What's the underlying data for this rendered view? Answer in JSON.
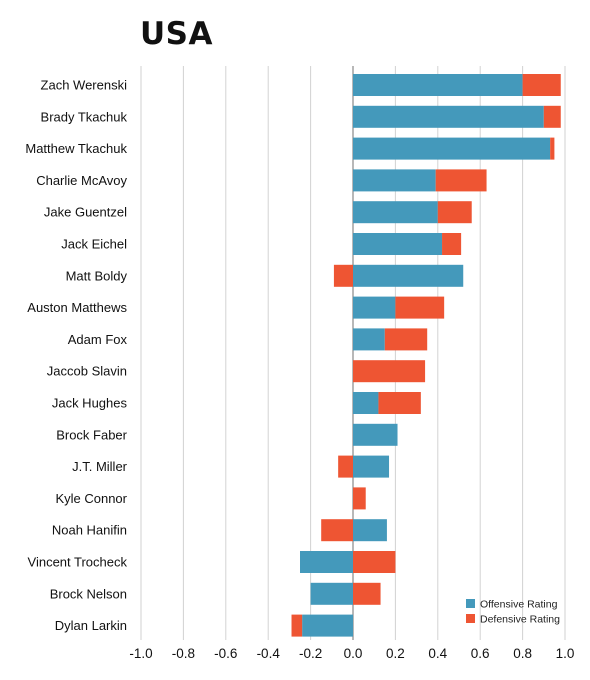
{
  "chart_data": {
    "type": "bar",
    "orientation": "horizontal",
    "stacked": true,
    "title": "USA",
    "xlabel": "",
    "ylabel": "",
    "xlim": [
      -1.0,
      1.0
    ],
    "xticks": [
      "-1.0",
      "-0.8",
      "-0.6",
      "-0.4",
      "-0.2",
      "0.0",
      "0.2",
      "0.4",
      "0.6",
      "0.8",
      "1.0"
    ],
    "grid": "vertical",
    "legend_position": "bottom-right",
    "categories": [
      "Zach Werenski",
      "Brady Tkachuk",
      "Matthew Tkachuk",
      "Charlie McAvoy",
      "Jake Guentzel",
      "Jack Eichel",
      "Matt Boldy",
      "Auston Matthews",
      "Adam Fox",
      "Jaccob Slavin",
      "Jack Hughes",
      "Brock Faber",
      "J.T. Miller",
      "Kyle Connor",
      "Noah Hanifin",
      "Vincent Trocheck",
      "Brock Nelson",
      "Dylan Larkin"
    ],
    "series": [
      {
        "name": "Offensive Rating",
        "color": "#4499bb",
        "values": [
          0.8,
          0.9,
          0.93,
          0.39,
          0.4,
          0.42,
          0.52,
          0.2,
          0.15,
          0.0,
          0.12,
          0.21,
          0.17,
          0.0,
          0.16,
          -0.25,
          -0.2,
          -0.24
        ]
      },
      {
        "name": "Defensive Rating",
        "color": "#ee5533",
        "values": [
          0.18,
          0.08,
          0.02,
          0.24,
          0.16,
          0.09,
          -0.09,
          0.23,
          0.2,
          0.34,
          0.2,
          0.0,
          -0.07,
          0.06,
          -0.15,
          0.2,
          0.13,
          -0.05
        ]
      }
    ]
  }
}
